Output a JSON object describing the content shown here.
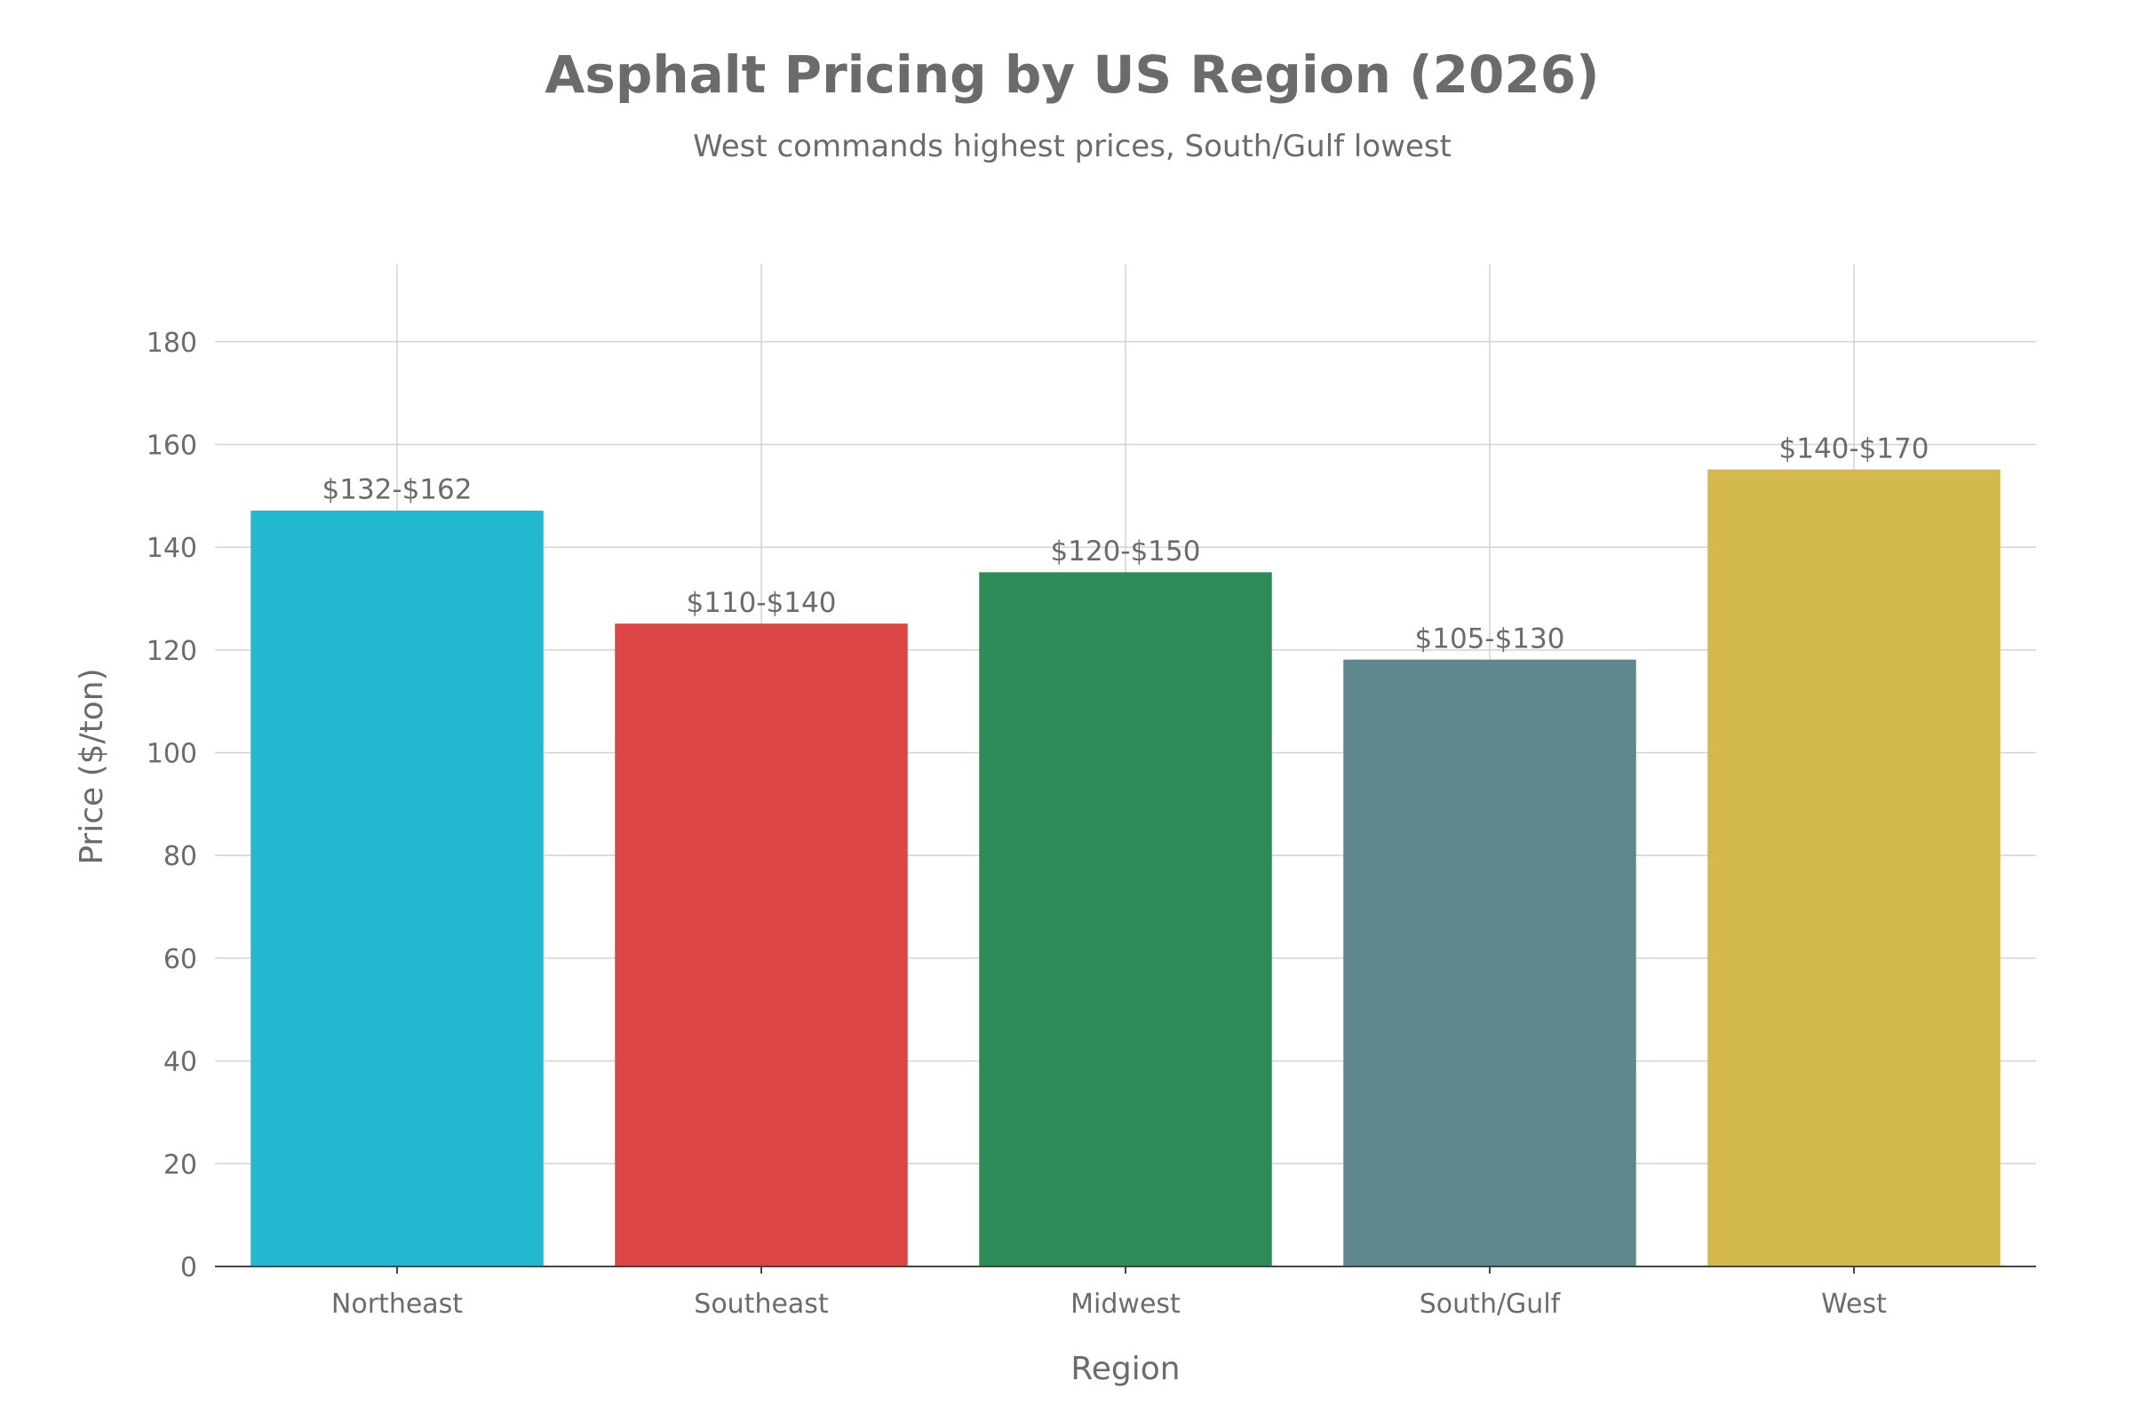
{
  "chart_data": {
    "type": "bar",
    "title": "Asphalt Pricing by US Region (2026)",
    "subtitle": "West commands highest prices, South/Gulf lowest",
    "xlabel": "Region",
    "ylabel": "Price ($/ton)",
    "categories": [
      "Northeast",
      "Southeast",
      "Midwest",
      "South/Gulf",
      "West"
    ],
    "values": [
      147,
      125,
      135,
      118,
      155
    ],
    "data_labels": [
      "$132-$162",
      "$110-$140",
      "$120-$150",
      "$105-$130",
      "$140-$170"
    ],
    "colors": [
      "#22b8cf",
      "#db4545",
      "#2e8b57",
      "#5e878e",
      "#d3b84b"
    ],
    "ylim": [
      0,
      195
    ],
    "yticks": [
      0,
      20,
      40,
      60,
      80,
      100,
      120,
      140,
      160,
      180
    ],
    "grid": true,
    "legend": "none"
  }
}
